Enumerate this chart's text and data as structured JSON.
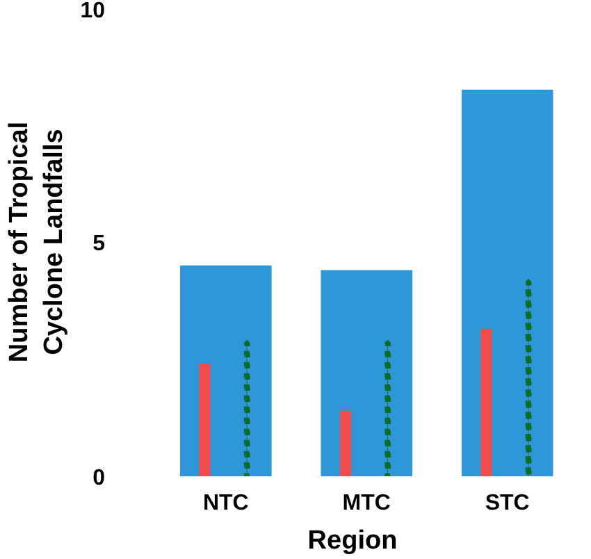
{
  "chart_data": {
    "type": "bar",
    "xlabel": "Region",
    "ylabel": "Number of Tropical\nCyclone Landfalls",
    "categories": [
      "NTC",
      "MTC",
      "STC"
    ],
    "series": [
      {
        "color": "#2e97d8",
        "values": [
          4.5,
          4.4,
          8.25
        ]
      },
      {
        "color": "#f24b4b",
        "values": [
          2.4,
          1.4,
          3.15
        ]
      },
      {
        "color": "#0a6b2a",
        "line_style": "dotted",
        "values": [
          2.85,
          2.85,
          4.15
        ]
      }
    ],
    "ylim": [
      0,
      10
    ],
    "yticks": [
      0,
      5,
      10
    ],
    "grid": false
  }
}
